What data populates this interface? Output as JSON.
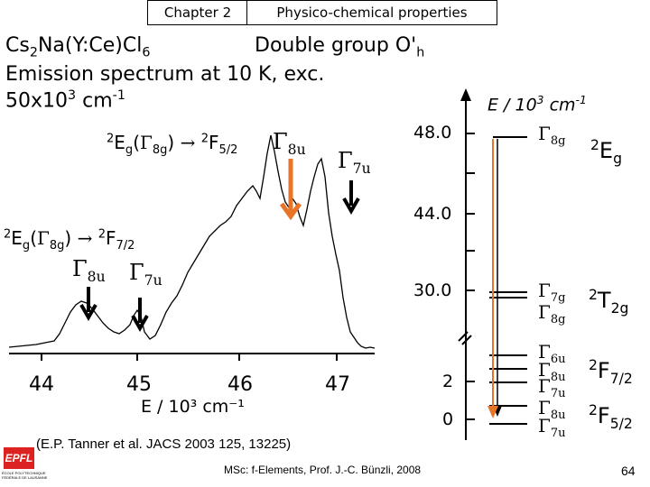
{
  "header": {
    "tab_left": "Chapter 2",
    "tab_right": "Physico-chemical properties"
  },
  "title": {
    "compound_main": "Cs",
    "compound_sub1": "2",
    "compound_mid": "Na(Y:Ce)Cl",
    "compound_sub2": "6",
    "double_group": "Double group O'",
    "double_group_sub": "h",
    "line2": "Emission spectrum at 10 K, exc.",
    "line3_main": "50x10",
    "line3_sup1": "3",
    "line3_unit": " cm",
    "line3_sup2": "-1"
  },
  "spectrum": {
    "transition1": {
      "sup": "2",
      "E": "E",
      "g": "g",
      "gamma": "Γ",
      "gamma_sub": "8g",
      "arrow": "→",
      "F_sup": "2",
      "F": "F",
      "F_sub": "5/2",
      "peak_a": "Γ",
      "peak_a_sub": "8u",
      "peak_b": "Γ",
      "peak_b_sub": "7u"
    },
    "transition2": {
      "sup": "2",
      "E": "E",
      "g": "g",
      "gamma": "Γ",
      "gamma_sub": "8g",
      "arrow": "→",
      "F_sup": "2",
      "F": "F",
      "F_sub": "7/2",
      "peak_a": "Γ",
      "peak_a_sub": "8u",
      "peak_b": "Γ",
      "peak_b_sub": "7u"
    },
    "x_ticks": [
      "44",
      "45",
      "46",
      "47"
    ],
    "x_label": "E / 10³ cm⁻¹"
  },
  "energy_diagram": {
    "axis_label": "E / 10",
    "axis_label_sup1": "3",
    "axis_label_unit": " cm",
    "axis_label_sup2": "-1",
    "ticks": [
      "48.0",
      "44.0",
      "30.0",
      "2",
      "0"
    ],
    "levels": {
      "eg": {
        "gamma": "Γ",
        "sub": "8g",
        "term_sup": "2",
        "term": "E",
        "term_sub": "g"
      },
      "t2g_a": {
        "gamma": "Γ",
        "sub": "7g"
      },
      "t2g_b": {
        "gamma": "Γ",
        "sub": "8g",
        "term_sup": "2",
        "term": "T",
        "term_sub": "2g"
      },
      "f72_a": {
        "gamma": "Γ",
        "sub": "6u"
      },
      "f72_b": {
        "gamma": "Γ",
        "sub": "8u",
        "term_sup": "2",
        "term": "F",
        "term_sub": "7/2"
      },
      "f72_c": {
        "gamma": "Γ",
        "sub": "7u"
      },
      "f52_a": {
        "gamma": "Γ",
        "sub": "8u",
        "term_sup": "2",
        "term": "F",
        "term_sub": "5/2"
      },
      "f52_b": {
        "gamma": "Γ",
        "sub": "7u"
      }
    }
  },
  "footer": {
    "reference": "(E.P. Tanner et al. JACS 2003 125, 13225)",
    "credit": "MSc: f-Elements,  Prof. J.-C. Bünzli, 2008",
    "page": "64",
    "logo_line1": "ÉCOLE POLYTECHNIQUE",
    "logo_line2": "FÉDÉRALE DE LAUSANNE"
  },
  "colors": {
    "arrow_orange": "#e8742a"
  }
}
